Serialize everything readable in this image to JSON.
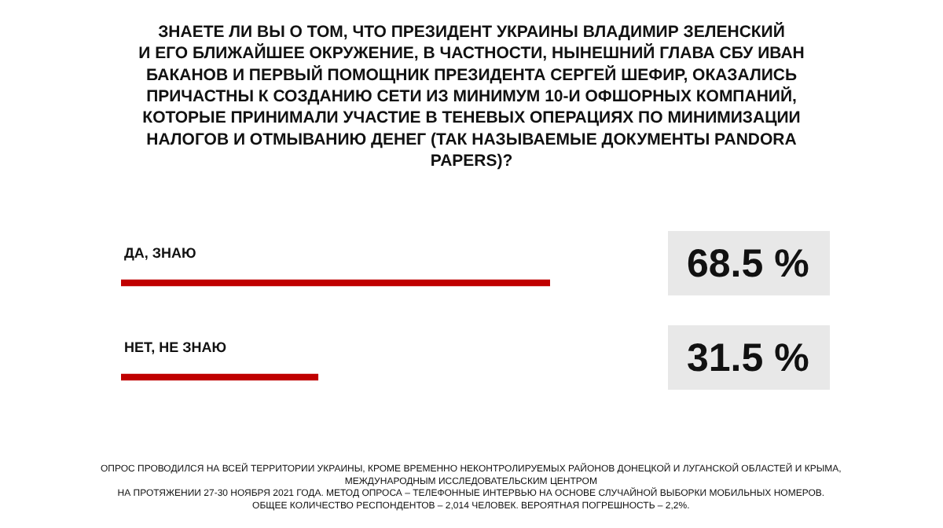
{
  "chart_data": {
    "type": "bar",
    "orientation": "horizontal",
    "title": "ЗНАЕТЕ ЛИ ВЫ О ТОМ, ЧТО ПРЕЗИДЕНТ УКРАИНЫ ВЛАДИМИР ЗЕЛЕНСКИЙ\nИ ЕГО БЛИЖАЙШЕЕ ОКРУЖЕНИЕ, В ЧАСТНОСТИ, НЫНЕШНИЙ ГЛАВА СБУ ИВАН\nБАКАНОВ И ПЕРВЫЙ ПОМОЩНИК ПРЕЗИДЕНТА СЕРГЕЙ ШЕФИР, ОКАЗАЛИСЬ\nПРИЧАСТНЫ К СОЗДАНИЮ СЕТИ ИЗ МИНИМУМ 10-И ОФШОРНЫХ КОМПАНИЙ,\nКОТОРЫЕ ПРИНИМАЛИ УЧАСТИЕ В ТЕНЕВЫХ ОПЕРАЦИЯХ ПО МИНИМИЗАЦИИ\nНАЛОГОВ И ОТМЫВАНИЮ ДЕНЕГ (ТАК НАЗЫВАЕМЫЕ ДОКУМЕНТЫ PANDORA\nPAPERS)?",
    "categories": [
      "ДА, ЗНАЮ",
      "НЕТ, НЕ ЗНАЮ"
    ],
    "values": [
      68.5,
      31.5
    ],
    "value_labels": [
      "68.5 %",
      "31.5 %"
    ],
    "color": "#c00000",
    "tick_labels": "y",
    "legend": false,
    "annotations": [
      "ОПРОС ПРОВОДИЛСЯ НА ВСЕЙ ТЕРРИТОРИИ УКРАИНЫ, КРОМЕ ВРЕМЕННО НЕКОНТРОЛИРУЕМЫХ РАЙОНОВ ДОНЕЦКОЙ И ЛУГАНСКОЙ ОБЛАСТЕЙ И КРЫМА,\nМЕЖДУНАРОДНЫМ ИССЛЕДОВАТЕЛЬСКИМ ЦЕНТРОМ\nНА ПРОТЯЖЕНИИ 27-30 НОЯБРЯ 2021 ГОДА. МЕТОД ОПРОСА – ТЕЛЕФОННЫЕ ИНТЕРВЬЮ НА ОСНОВЕ СЛУЧАЙНОЙ ВЫБОРКИ МОБИЛЬНЫХ НОМЕРОВ.\nОБЩЕЕ КОЛИЧЕСТВО РЕСПОНДЕНТОВ – 2,014 ЧЕЛОВЕК. ВЕРОЯТНАЯ ПОГРЕШНОСТЬ – 2,2%."
    ]
  }
}
